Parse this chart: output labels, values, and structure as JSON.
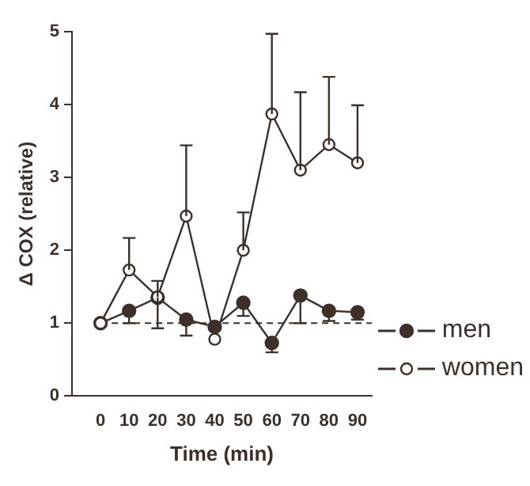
{
  "chart_data": {
    "type": "line",
    "xlabel": "Time (min)",
    "ylabel": "Δ COX (relative)",
    "x": [
      0,
      10,
      20,
      30,
      40,
      50,
      60,
      70,
      80,
      90
    ],
    "series": [
      {
        "name": "men",
        "color": "#3d3028",
        "values": [
          1.0,
          1.17,
          1.35,
          1.05,
          0.95,
          1.28,
          0.73,
          1.38,
          1.17,
          1.15
        ],
        "errors": [
          null,
          [
            1.0,
            1.17
          ],
          [
            0.93,
            1.35
          ],
          [
            0.83,
            1.05
          ],
          null,
          [
            1.1,
            1.28
          ],
          [
            0.6,
            0.73
          ],
          [
            1.0,
            1.38
          ],
          [
            1.03,
            1.17
          ],
          [
            1.05,
            1.15
          ]
        ]
      },
      {
        "name": "women",
        "color": "#3d3028",
        "values": [
          1.0,
          1.73,
          1.36,
          2.47,
          0.78,
          2.0,
          3.87,
          3.1,
          3.45,
          3.2
        ],
        "errors": [
          null,
          [
            1.73,
            2.17
          ],
          [
            1.36,
            1.58
          ],
          [
            2.47,
            3.44
          ],
          null,
          [
            2.0,
            2.52
          ],
          [
            3.87,
            4.97
          ],
          [
            3.1,
            4.17
          ],
          [
            3.45,
            4.38
          ],
          [
            3.2,
            3.99
          ]
        ]
      }
    ],
    "marker": "circle",
    "xlim": [
      -10,
      95
    ],
    "xticks": [
      0,
      10,
      20,
      30,
      40,
      50,
      60,
      70,
      80,
      90
    ],
    "ylim": [
      0,
      5
    ],
    "yticks": [
      0,
      1,
      2,
      3,
      4,
      5
    ],
    "ref_lines": [
      {
        "axis": "y",
        "value": 1,
        "line_style": "dashed"
      }
    ],
    "legend": "bottom right",
    "grid": false
  }
}
